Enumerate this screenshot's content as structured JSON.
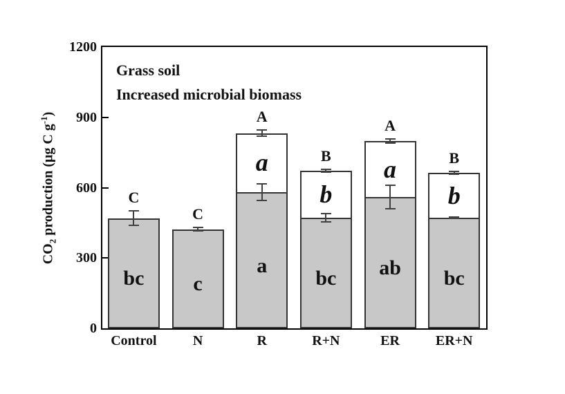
{
  "chart_data": {
    "type": "bar",
    "stacked": true,
    "title_lines": [
      "Grass soil",
      "Increased microbial biomass"
    ],
    "ylabel_text": "CO2 production (ug C g-1)",
    "ylabel_parts": {
      "base": "CO",
      "sub": "2",
      "rest": " production (μg C g",
      "sup": "-1",
      "close": ")"
    },
    "ylim": [
      0,
      1200
    ],
    "yticks": [
      0,
      300,
      600,
      900,
      1200
    ],
    "grid": false,
    "legend": "none",
    "categories": [
      "Control",
      "N",
      "R",
      "R+N",
      "ER",
      "ER+N"
    ],
    "bars": [
      {
        "category": "Control",
        "gray_value": 470,
        "gray_error": 35,
        "total_value": 470,
        "total_error": null,
        "letter_above": "C",
        "letter_white": "",
        "letter_gray": "bc"
      },
      {
        "category": "N",
        "gray_value": 422,
        "gray_error": 10,
        "total_value": 422,
        "total_error": null,
        "letter_above": "C",
        "letter_white": "",
        "letter_gray": "c"
      },
      {
        "category": "R",
        "gray_value": 580,
        "gray_error": 38,
        "total_value": 833,
        "total_error": 15,
        "letter_above": "A",
        "letter_white": "a",
        "letter_gray": "a"
      },
      {
        "category": "R+N",
        "gray_value": 472,
        "gray_error": 20,
        "total_value": 672,
        "total_error": 9,
        "letter_above": "B",
        "letter_white": "b",
        "letter_gray": "bc"
      },
      {
        "category": "ER",
        "gray_value": 560,
        "gray_error": 52,
        "total_value": 798,
        "total_error": 12,
        "letter_above": "A",
        "letter_white": "a",
        "letter_gray": "ab"
      },
      {
        "category": "ER+N",
        "gray_value": 472,
        "gray_error": 6,
        "total_value": 663,
        "total_error": 8,
        "letter_above": "B",
        "letter_white": "b",
        "letter_gray": "bc"
      }
    ],
    "colors": {
      "gray_fill": "#c8c8c8",
      "white_fill": "#ffffff",
      "bar_border": "#333333",
      "error_bar": "#404040",
      "axis": "#000000",
      "text": "#111111",
      "background": "#ffffff"
    }
  }
}
